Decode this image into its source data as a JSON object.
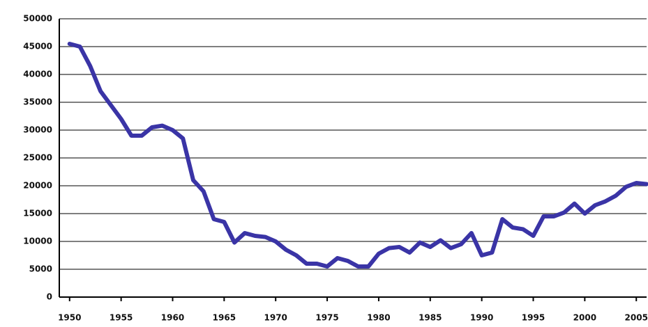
{
  "chart_data": {
    "type": "line",
    "x": [
      1950,
      1951,
      1952,
      1953,
      1954,
      1955,
      1956,
      1957,
      1958,
      1959,
      1960,
      1961,
      1962,
      1963,
      1964,
      1965,
      1966,
      1967,
      1968,
      1969,
      1970,
      1971,
      1972,
      1973,
      1974,
      1975,
      1976,
      1977,
      1978,
      1979,
      1980,
      1981,
      1982,
      1983,
      1984,
      1985,
      1986,
      1987,
      1988,
      1989,
      1990,
      1991,
      1992,
      1993,
      1994,
      1995,
      1996,
      1997,
      1998,
      1999,
      2000,
      2001,
      2002,
      2003,
      2004,
      2005,
      2006
    ],
    "series": [
      {
        "color": "#3a34a6",
        "values": [
          45500,
          45000,
          41500,
          37000,
          34500,
          32000,
          29000,
          29000,
          30500,
          30800,
          30000,
          28500,
          21000,
          19000,
          14000,
          13500,
          9800,
          11500,
          11000,
          10800,
          10000,
          8500,
          7500,
          6000,
          6000,
          5500,
          7000,
          6500,
          5500,
          5500,
          7800,
          8800,
          9000,
          8000,
          9800,
          9000,
          10200,
          8800,
          9500,
          11500,
          7500,
          8000,
          14000,
          12500,
          12200,
          11000,
          14500,
          14500,
          15200,
          16800,
          15000,
          16500,
          17200,
          18200,
          19800,
          20500,
          20300
        ]
      }
    ],
    "xlim": [
      1949,
      2006
    ],
    "xticks": [
      1950,
      1955,
      1960,
      1965,
      1970,
      1975,
      1980,
      1985,
      1990,
      1995,
      2000,
      2005
    ],
    "ylim": [
      0,
      50000
    ],
    "yticks": [
      0,
      5000,
      10000,
      15000,
      20000,
      25000,
      30000,
      35000,
      40000,
      45000,
      50000
    ],
    "grid": true
  }
}
